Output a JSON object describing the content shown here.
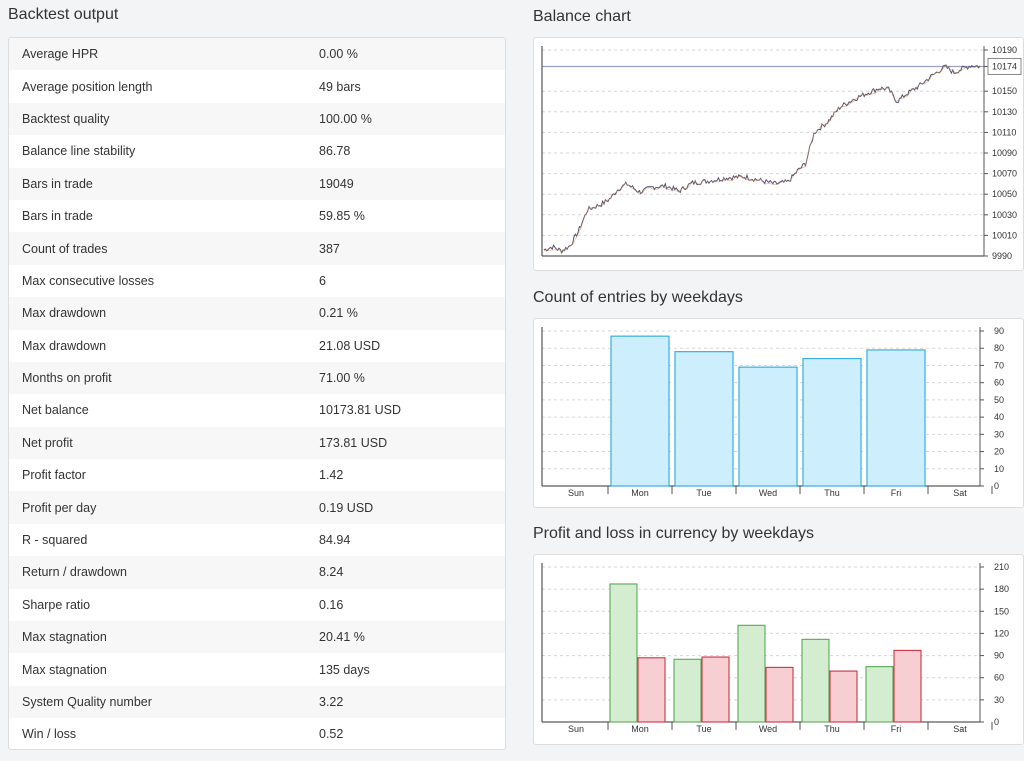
{
  "left_title": "Backtest output",
  "stats": [
    {
      "name": "Average HPR",
      "value": "0.00 %"
    },
    {
      "name": "Average position length",
      "value": "49 bars"
    },
    {
      "name": "Backtest quality",
      "value": "100.00 %"
    },
    {
      "name": "Balance line stability",
      "value": "86.78"
    },
    {
      "name": "Bars in trade",
      "value": "19049"
    },
    {
      "name": "Bars in trade",
      "value": "59.85 %"
    },
    {
      "name": "Count of trades",
      "value": "387"
    },
    {
      "name": "Max consecutive losses",
      "value": "6"
    },
    {
      "name": "Max drawdown",
      "value": "0.21 %"
    },
    {
      "name": "Max drawdown",
      "value": "21.08 USD"
    },
    {
      "name": "Months on profit",
      "value": "71.00 %"
    },
    {
      "name": "Net balance",
      "value": "10173.81 USD"
    },
    {
      "name": "Net profit",
      "value": "173.81 USD"
    },
    {
      "name": "Profit factor",
      "value": "1.42"
    },
    {
      "name": "Profit per day",
      "value": "0.19 USD"
    },
    {
      "name": "R - squared",
      "value": "84.94"
    },
    {
      "name": "Return / drawdown",
      "value": "8.24"
    },
    {
      "name": "Sharpe ratio",
      "value": "0.16"
    },
    {
      "name": "Max stagnation",
      "value": "20.41 %"
    },
    {
      "name": "Max stagnation",
      "value": "135 days"
    },
    {
      "name": "System Quality number",
      "value": "3.22"
    },
    {
      "name": "Win / loss",
      "value": "0.52"
    }
  ],
  "colors": {
    "entries_fill": "#cdeefc",
    "entries_stroke": "#3aaee0",
    "profit_fill": "#d4ecd0",
    "profit_stroke": "#5aa85a",
    "loss_fill": "#f7cfd2",
    "loss_stroke": "#cc3344",
    "balance_line": "#5a5070",
    "balance_marker": "#9aa0c0"
  },
  "chart_data": [
    {
      "type": "line",
      "title": "Balance chart",
      "ylim": [
        9990,
        10190
      ],
      "yticks": [
        "9990",
        "10010",
        "10030",
        "10050",
        "10070",
        "10090",
        "10110",
        "10130",
        "10150",
        "10174",
        "10190"
      ],
      "current_value": "10174",
      "grid": true,
      "anchors": [
        [
          0.0,
          9996
        ],
        [
          0.02,
          9999
        ],
        [
          0.04,
          9995
        ],
        [
          0.06,
          10000
        ],
        [
          0.08,
          10015
        ],
        [
          0.1,
          10035
        ],
        [
          0.13,
          10040
        ],
        [
          0.15,
          10045
        ],
        [
          0.17,
          10055
        ],
        [
          0.19,
          10060
        ],
        [
          0.22,
          10052
        ],
        [
          0.25,
          10057
        ],
        [
          0.28,
          10058
        ],
        [
          0.31,
          10053
        ],
        [
          0.34,
          10061
        ],
        [
          0.38,
          10063
        ],
        [
          0.42,
          10066
        ],
        [
          0.46,
          10067
        ],
        [
          0.5,
          10063
        ],
        [
          0.53,
          10060
        ],
        [
          0.56,
          10062
        ],
        [
          0.58,
          10072
        ],
        [
          0.6,
          10080
        ],
        [
          0.62,
          10110
        ],
        [
          0.65,
          10120
        ],
        [
          0.68,
          10135
        ],
        [
          0.71,
          10142
        ],
        [
          0.74,
          10148
        ],
        [
          0.77,
          10153
        ],
        [
          0.79,
          10152
        ],
        [
          0.81,
          10140
        ],
        [
          0.83,
          10147
        ],
        [
          0.86,
          10155
        ],
        [
          0.89,
          10165
        ],
        [
          0.92,
          10174
        ],
        [
          0.94,
          10168
        ],
        [
          0.96,
          10172
        ],
        [
          0.98,
          10175
        ],
        [
          1.0,
          10174
        ]
      ]
    },
    {
      "type": "bar",
      "title": "Count of entries by weekdays",
      "categories": [
        "Sun",
        "Mon",
        "Tue",
        "Wed",
        "Thu",
        "Fri",
        "Sat"
      ],
      "values": [
        0,
        87,
        78,
        69,
        74,
        79,
        0
      ],
      "ylim": [
        0,
        90
      ],
      "yticks": [
        0,
        10,
        20,
        30,
        40,
        50,
        60,
        70,
        80,
        90
      ]
    },
    {
      "type": "bar",
      "title": "Profit and loss in currency by weekdays",
      "categories": [
        "Sun",
        "Mon",
        "Tue",
        "Wed",
        "Thu",
        "Fri",
        "Sat"
      ],
      "series": [
        {
          "values": [
            0,
            187,
            85,
            131,
            112,
            75,
            0
          ]
        },
        {
          "values": [
            0,
            87,
            88,
            74,
            69,
            97,
            0
          ]
        }
      ],
      "ylim": [
        0,
        210
      ],
      "yticks": [
        0,
        30,
        60,
        90,
        120,
        150,
        180,
        210
      ]
    }
  ]
}
